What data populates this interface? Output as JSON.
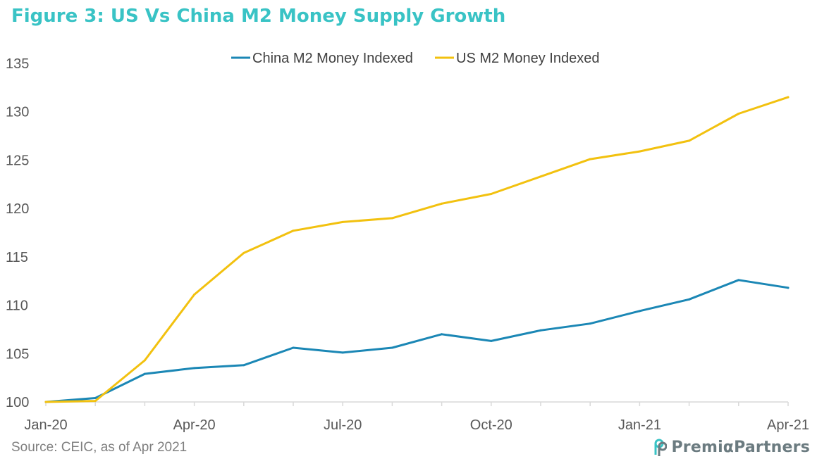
{
  "figure": {
    "title": "Figure 3: US Vs China M2 Money Supply Growth",
    "source": "Source: CEIC, as of Apr 2021",
    "brand": "PremiαPartners",
    "title_color": "#39C3C5"
  },
  "chart_data": {
    "type": "line",
    "title": "Figure 3: US Vs China M2 Money Supply Growth",
    "xlabel": "",
    "ylabel": "",
    "categories": [
      "Jan-20",
      "Feb-20",
      "Mar-20",
      "Apr-20",
      "May-20",
      "Jun-20",
      "Jul-20",
      "Aug-20",
      "Sep-20",
      "Oct-20",
      "Nov-20",
      "Dec-20",
      "Jan-21",
      "Feb-21",
      "Mar-21",
      "Apr-21"
    ],
    "x_tick_labels": [
      "Jan-20",
      "Apr-20",
      "Jul-20",
      "Oct-20",
      "Jan-21",
      "Apr-21"
    ],
    "y_ticks": [
      100,
      105,
      110,
      115,
      120,
      125,
      130,
      135
    ],
    "ylim": [
      100,
      135
    ],
    "grid": false,
    "legend_position": "top-center",
    "series": [
      {
        "name": "China M2 Money Indexed",
        "color": "#1B87B5",
        "values": [
          100,
          100.4,
          102.9,
          103.5,
          103.8,
          105.6,
          105.1,
          105.6,
          107.0,
          106.3,
          107.4,
          108.1,
          109.4,
          110.6,
          112.6,
          111.8
        ]
      },
      {
        "name": "US M2 Money Indexed",
        "color": "#F2C10F",
        "values": [
          100,
          100.1,
          104.3,
          111.1,
          115.4,
          117.7,
          118.6,
          119.0,
          120.5,
          121.5,
          123.3,
          125.1,
          125.9,
          127.0,
          129.8,
          131.5
        ]
      }
    ]
  }
}
